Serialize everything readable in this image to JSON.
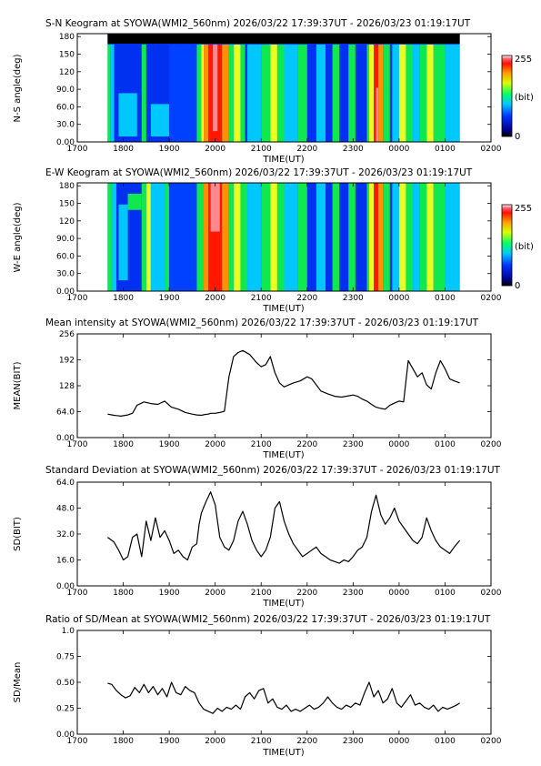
{
  "chart_data": [
    {
      "type": "heatmap",
      "title": "S-N Keogram at SYOWA(WMI2_560nm)    2026/03/22 17:39:37UT - 2026/03/23 01:19:17UT",
      "xlabel": "TIME(UT)",
      "ylabel": "N-S angle(deg)",
      "xticks": [
        "1700",
        "1800",
        "1900",
        "2000",
        "2100",
        "2200",
        "2300",
        "0000",
        "0100",
        "0200"
      ],
      "yticks": [
        "0.00",
        "30.0",
        "60.0",
        "90.0",
        "120",
        "150",
        "180"
      ],
      "xlim": [
        17.0,
        26.0
      ],
      "ylim": [
        0,
        185
      ],
      "data_range": [
        17.66,
        25.32
      ],
      "colorbar": {
        "min_label": "0",
        "max_label": "255",
        "unit_label": "(bit)"
      }
    },
    {
      "type": "heatmap",
      "title": "E-W Keogram at SYOWA(WMI2_560nm)    2026/03/22 17:39:37UT - 2026/03/23 01:19:17UT",
      "xlabel": "TIME(UT)",
      "ylabel": "W-E angle(deg)",
      "xticks": [
        "1700",
        "1800",
        "1900",
        "2000",
        "2100",
        "2200",
        "2300",
        "0000",
        "0100",
        "0200"
      ],
      "yticks": [
        "0.00",
        "30.0",
        "60.0",
        "90.0",
        "120",
        "150",
        "180"
      ],
      "xlim": [
        17.0,
        26.0
      ],
      "ylim": [
        0,
        185
      ],
      "data_range": [
        17.66,
        25.32
      ],
      "colorbar": {
        "min_label": "0",
        "max_label": "255",
        "unit_label": "(bit)"
      }
    },
    {
      "type": "line",
      "title": "Mean intensity at SYOWA(WMI2_560nm)    2026/03/22 17:39:37UT - 2026/03/23 01:19:17UT",
      "xlabel": "TIME(UT)",
      "ylabel": "MEAN(BIT)",
      "xticks": [
        "1700",
        "1800",
        "1900",
        "2000",
        "2100",
        "2200",
        "2300",
        "0000",
        "0100",
        "0200"
      ],
      "yticks": [
        "0.00",
        "64.0",
        "128",
        "192",
        "256"
      ],
      "xlim": [
        17.0,
        26.0
      ],
      "ylim": [
        0,
        256
      ],
      "series": [
        {
          "x": [
            17.66,
            17.8,
            17.95,
            18.1,
            18.2,
            18.3,
            18.45,
            18.6,
            18.75,
            18.9,
            19.05,
            19.2,
            19.35,
            19.5,
            19.6,
            19.7,
            19.78,
            19.85,
            19.9,
            20.0,
            20.1,
            20.2,
            20.3,
            20.4,
            20.5,
            20.6,
            20.75,
            20.9,
            21.0,
            21.1,
            21.2,
            21.3,
            21.4,
            21.5,
            21.6,
            21.7,
            21.85,
            22.0,
            22.1,
            22.2,
            22.3,
            22.45,
            22.6,
            22.75,
            22.9,
            23.0,
            23.1,
            23.2,
            23.3,
            23.4,
            23.5,
            23.6,
            23.7,
            23.8,
            23.9,
            24.0,
            24.1,
            24.2,
            24.3,
            24.4,
            24.5,
            24.6,
            24.7,
            24.8,
            24.9,
            25.0,
            25.1,
            25.2,
            25.32
          ],
          "y": [
            58,
            55,
            53,
            56,
            60,
            80,
            88,
            84,
            82,
            90,
            75,
            70,
            62,
            58,
            56,
            55,
            57,
            58,
            60,
            60,
            62,
            65,
            150,
            200,
            210,
            215,
            205,
            185,
            175,
            180,
            200,
            160,
            135,
            125,
            130,
            135,
            140,
            150,
            145,
            130,
            115,
            108,
            102,
            100,
            103,
            105,
            102,
            95,
            90,
            82,
            75,
            72,
            70,
            80,
            85,
            90,
            88,
            190,
            170,
            150,
            160,
            130,
            120,
            160,
            190,
            170,
            145,
            140,
            135
          ]
        }
      ]
    },
    {
      "type": "line",
      "title": "Standard Deviation at SYOWA(WMI2_560nm)    2026/03/22 17:39:37UT - 2026/03/23 01:19:17UT",
      "xlabel": "TIME(UT)",
      "ylabel": "SD(BIT)",
      "xticks": [
        "1700",
        "1800",
        "1900",
        "2000",
        "2100",
        "2200",
        "2300",
        "0000",
        "0100",
        "0200"
      ],
      "yticks": [
        "0.00",
        "16.0",
        "32.0",
        "48.0",
        "64.0"
      ],
      "xlim": [
        17.0,
        26.0
      ],
      "ylim": [
        0,
        64
      ],
      "series": [
        {
          "x": [
            17.66,
            17.8,
            17.9,
            18.0,
            18.1,
            18.2,
            18.3,
            18.4,
            18.5,
            18.6,
            18.7,
            18.8,
            18.9,
            19.0,
            19.1,
            19.2,
            19.3,
            19.4,
            19.5,
            19.6,
            19.65,
            19.7,
            19.8,
            19.9,
            20.0,
            20.05,
            20.1,
            20.2,
            20.3,
            20.4,
            20.5,
            20.6,
            20.7,
            20.8,
            20.9,
            21.0,
            21.1,
            21.2,
            21.3,
            21.4,
            21.5,
            21.6,
            21.7,
            21.8,
            21.9,
            22.0,
            22.1,
            22.2,
            22.3,
            22.4,
            22.5,
            22.6,
            22.7,
            22.8,
            22.9,
            23.0,
            23.1,
            23.2,
            23.3,
            23.4,
            23.5,
            23.6,
            23.7,
            23.8,
            23.9,
            24.0,
            24.1,
            24.2,
            24.3,
            24.4,
            24.5,
            24.6,
            24.7,
            24.8,
            24.9,
            25.0,
            25.1,
            25.2,
            25.32
          ],
          "y": [
            30,
            27,
            22,
            16,
            18,
            30,
            32,
            18,
            40,
            28,
            42,
            30,
            34,
            28,
            20,
            22,
            18,
            16,
            24,
            26,
            38,
            45,
            52,
            58,
            50,
            40,
            30,
            24,
            22,
            28,
            40,
            46,
            38,
            28,
            22,
            18,
            22,
            30,
            48,
            52,
            40,
            32,
            26,
            22,
            18,
            20,
            22,
            24,
            20,
            18,
            16,
            15,
            14,
            16,
            15,
            18,
            22,
            24,
            30,
            46,
            56,
            44,
            38,
            42,
            48,
            40,
            36,
            32,
            28,
            26,
            30,
            42,
            34,
            28,
            24,
            22,
            20,
            24,
            28
          ]
        }
      ]
    },
    {
      "type": "line",
      "title": "Ratio of SD/Mean at SYOWA(WMI2_560nm)    2026/03/22 17:39:37UT - 2026/03/23 01:19:17UT",
      "xlabel": "TIME(UT)",
      "ylabel": "SD/Mean",
      "xticks": [
        "1700",
        "1800",
        "1900",
        "2000",
        "2100",
        "2200",
        "2300",
        "0000",
        "0100",
        "0200"
      ],
      "yticks": [
        "0.00",
        "0.25",
        "0.50",
        "0.75",
        "1.0"
      ],
      "xlim": [
        17.0,
        26.0
      ],
      "ylim": [
        0,
        1.0
      ],
      "series": [
        {
          "x": [
            17.66,
            17.75,
            17.85,
            17.95,
            18.05,
            18.15,
            18.25,
            18.35,
            18.45,
            18.55,
            18.65,
            18.75,
            18.85,
            18.95,
            19.05,
            19.15,
            19.25,
            19.35,
            19.45,
            19.55,
            19.65,
            19.75,
            19.85,
            19.95,
            20.05,
            20.15,
            20.25,
            20.35,
            20.45,
            20.55,
            20.65,
            20.75,
            20.85,
            20.95,
            21.05,
            21.15,
            21.25,
            21.35,
            21.45,
            21.55,
            21.65,
            21.75,
            21.85,
            21.95,
            22.05,
            22.15,
            22.25,
            22.35,
            22.45,
            22.55,
            22.65,
            22.75,
            22.85,
            22.95,
            23.05,
            23.15,
            23.25,
            23.35,
            23.45,
            23.55,
            23.65,
            23.75,
            23.85,
            23.95,
            24.05,
            24.15,
            24.25,
            24.35,
            24.45,
            24.55,
            24.65,
            24.75,
            24.85,
            24.95,
            25.05,
            25.15,
            25.25,
            25.32
          ],
          "y": [
            0.49,
            0.48,
            0.42,
            0.38,
            0.35,
            0.37,
            0.45,
            0.4,
            0.48,
            0.4,
            0.46,
            0.38,
            0.44,
            0.36,
            0.5,
            0.4,
            0.38,
            0.46,
            0.42,
            0.4,
            0.3,
            0.24,
            0.22,
            0.2,
            0.25,
            0.22,
            0.26,
            0.24,
            0.28,
            0.24,
            0.36,
            0.4,
            0.34,
            0.42,
            0.44,
            0.3,
            0.34,
            0.26,
            0.24,
            0.28,
            0.22,
            0.24,
            0.22,
            0.25,
            0.28,
            0.24,
            0.26,
            0.3,
            0.36,
            0.3,
            0.26,
            0.24,
            0.28,
            0.26,
            0.3,
            0.28,
            0.4,
            0.5,
            0.36,
            0.42,
            0.3,
            0.34,
            0.44,
            0.3,
            0.26,
            0.32,
            0.38,
            0.28,
            0.3,
            0.26,
            0.24,
            0.28,
            0.22,
            0.26,
            0.24,
            0.26,
            0.28,
            0.3
          ]
        }
      ]
    }
  ]
}
